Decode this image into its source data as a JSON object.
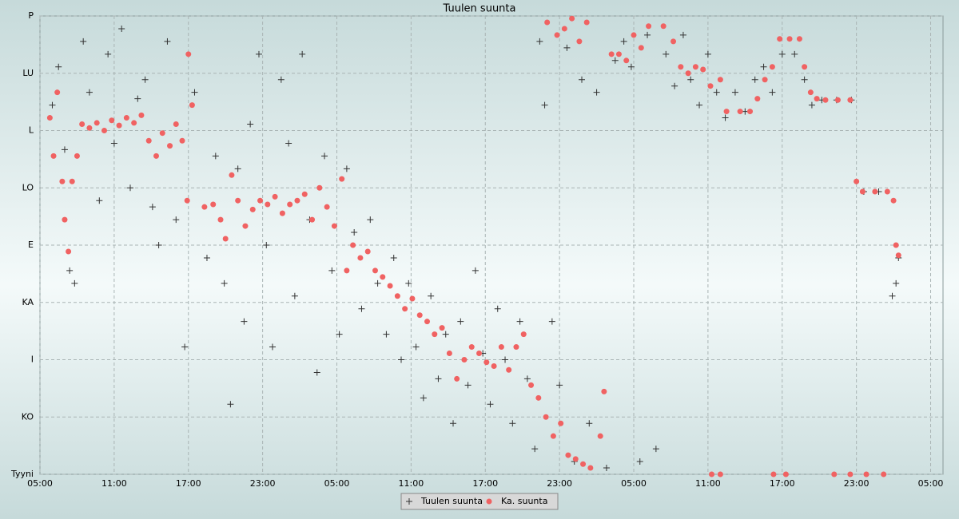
{
  "chart_data": {
    "type": "scatter",
    "title": "Tuulen suunta",
    "xlim": [
      5,
      78
    ],
    "ylim": [
      0,
      360
    ],
    "grid": true,
    "legend": "bottom",
    "xticks": [
      {
        "value": 5,
        "label": "05:00"
      },
      {
        "value": 11,
        "label": "11:00"
      },
      {
        "value": 17,
        "label": "17:00"
      },
      {
        "value": 23,
        "label": "23:00"
      },
      {
        "value": 29,
        "label": "05:00"
      },
      {
        "value": 35,
        "label": "11:00"
      },
      {
        "value": 41,
        "label": "17:00"
      },
      {
        "value": 47,
        "label": "23:00"
      },
      {
        "value": 53,
        "label": "05:00"
      },
      {
        "value": 59,
        "label": "11:00"
      },
      {
        "value": 65,
        "label": "17:00"
      },
      {
        "value": 71,
        "label": "23:00"
      },
      {
        "value": 77,
        "label": "05:00"
      }
    ],
    "yticks": [
      {
        "value": 0,
        "label": "Tyyni"
      },
      {
        "value": 45,
        "label": "KO"
      },
      {
        "value": 90,
        "label": "I"
      },
      {
        "value": 135,
        "label": "KA"
      },
      {
        "value": 180,
        "label": "E"
      },
      {
        "value": 225,
        "label": "LO"
      },
      {
        "value": 270,
        "label": "L"
      },
      {
        "value": 315,
        "label": "LU"
      },
      {
        "value": 360,
        "label": "P"
      }
    ],
    "series": [
      {
        "name": "Tuulen suunta",
        "color": "#333333",
        "marker": "plus",
        "x": [
          6,
          6.5,
          7,
          7.4,
          7.8,
          8.5,
          9,
          9.8,
          10.5,
          11,
          11.6,
          12.3,
          12.9,
          13.5,
          14.1,
          14.6,
          15.3,
          16,
          16.7,
          17.5,
          18.5,
          19.2,
          19.9,
          20.4,
          21,
          21.5,
          22,
          22.7,
          23.3,
          23.8,
          24.5,
          25.1,
          25.6,
          26.2,
          26.8,
          27.4,
          28,
          28.6,
          29.2,
          29.8,
          30.4,
          31,
          31.7,
          32.3,
          33,
          33.6,
          34.2,
          34.8,
          35.4,
          36,
          36.6,
          37.2,
          37.8,
          38.4,
          39,
          39.6,
          40.2,
          40.8,
          41.4,
          42,
          42.6,
          43.2,
          43.8,
          44.4,
          45,
          45.4,
          45.8,
          46.4,
          47,
          47.6,
          48.2,
          48.8,
          49.4,
          50,
          50.8,
          51.5,
          52.2,
          52.8,
          53.5,
          54.1,
          54.8,
          55.6,
          56.3,
          57,
          57.6,
          58.3,
          59,
          59.7,
          60.4,
          61.2,
          62,
          62.8,
          63.5,
          64.2,
          65,
          66,
          66.8,
          67.4,
          68.2,
          69.4,
          70.6,
          71.6,
          72.8,
          73.9,
          74.2,
          74.4
        ],
        "values": [
          290,
          320,
          255,
          160,
          150,
          340,
          300,
          215,
          330,
          260,
          350,
          225,
          295,
          310,
          210,
          180,
          340,
          200,
          100,
          300,
          170,
          250,
          150,
          55,
          240,
          120,
          275,
          330,
          180,
          100,
          310,
          260,
          140,
          330,
          200,
          80,
          250,
          160,
          110,
          240,
          190,
          130,
          200,
          150,
          110,
          170,
          90,
          150,
          100,
          60,
          140,
          75,
          110,
          40,
          120,
          70,
          160,
          95,
          55,
          130,
          90,
          40,
          120,
          75,
          20,
          340,
          290,
          120,
          70,
          335,
          10,
          310,
          40,
          300,
          5,
          325,
          340,
          320,
          10,
          345,
          20,
          330,
          305,
          345,
          310,
          290,
          330,
          300,
          280,
          300,
          285,
          310,
          320,
          300,
          330,
          330,
          310,
          290,
          294,
          294,
          294,
          222,
          222,
          140,
          150,
          170
        ]
      },
      {
        "name": "Ka. suunta",
        "color": "#f06262",
        "marker": "circle",
        "x": [
          5.8,
          6.1,
          6.4,
          6.8,
          7.0,
          7.3,
          7.6,
          8.0,
          8.4,
          9.0,
          9.6,
          10.2,
          10.8,
          11.4,
          12.0,
          12.6,
          13.2,
          13.8,
          14.4,
          14.9,
          15.5,
          16.0,
          16.5,
          16.9,
          17.0,
          17.3,
          18.3,
          19.0,
          19.6,
          20.0,
          20.5,
          21.0,
          21.6,
          22.2,
          22.8,
          23.4,
          24.0,
          24.6,
          25.2,
          25.8,
          26.4,
          27.0,
          27.6,
          28.2,
          28.8,
          29.4,
          29.8,
          30.3,
          30.9,
          31.5,
          32.1,
          32.7,
          33.3,
          33.9,
          34.5,
          35.1,
          35.7,
          36.3,
          36.9,
          37.5,
          38.1,
          38.7,
          39.3,
          39.9,
          40.5,
          41.1,
          41.7,
          42.3,
          42.9,
          43.5,
          44.1,
          44.7,
          45.3,
          45.9,
          46.5,
          47.1,
          47.7,
          48.3,
          48.9,
          49.5,
          46.0,
          46.8,
          47.4,
          48.0,
          48.6,
          49.2,
          50.3,
          50.6,
          51.2,
          51.8,
          52.4,
          53.0,
          53.6,
          54.2,
          55.4,
          56.2,
          56.8,
          57.4,
          58.0,
          58.6,
          59.2,
          60.0,
          60.5,
          61.6,
          62.4,
          63.0,
          63.6,
          64.2,
          64.8,
          65.6,
          66.4,
          66.8,
          67.3,
          67.8,
          68.5,
          69.5,
          70.5,
          71.0,
          71.5,
          72.5,
          73.5,
          74.0,
          74.2,
          74.4,
          59.3,
          60.0,
          64.3,
          65.3,
          69.2,
          70.5,
          71.8,
          73.2
        ],
        "values": [
          280,
          250,
          300,
          230,
          200,
          175,
          230,
          250,
          275,
          272,
          276,
          270,
          278,
          274,
          280,
          276,
          282,
          262,
          250,
          268,
          258,
          275,
          262,
          215,
          330,
          290,
          210,
          212,
          200,
          185,
          235,
          215,
          195,
          208,
          215,
          212,
          218,
          205,
          212,
          215,
          220,
          200,
          225,
          210,
          195,
          232,
          160,
          180,
          170,
          175,
          160,
          155,
          148,
          140,
          130,
          138,
          125,
          120,
          110,
          115,
          95,
          75,
          90,
          100,
          95,
          88,
          85,
          100,
          82,
          100,
          110,
          70,
          60,
          45,
          30,
          40,
          15,
          12,
          8,
          5,
          355,
          345,
          350,
          358,
          340,
          355,
          30,
          65,
          330,
          330,
          325,
          345,
          335,
          352,
          352,
          340,
          320,
          315,
          320,
          318,
          305,
          310,
          285,
          285,
          285,
          295,
          310,
          320,
          342,
          342,
          342,
          320,
          300,
          295,
          294,
          294,
          294,
          230,
          222,
          222,
          222,
          215,
          180,
          172,
          0,
          0,
          0,
          0,
          0,
          0,
          0,
          0
        ]
      }
    ]
  }
}
